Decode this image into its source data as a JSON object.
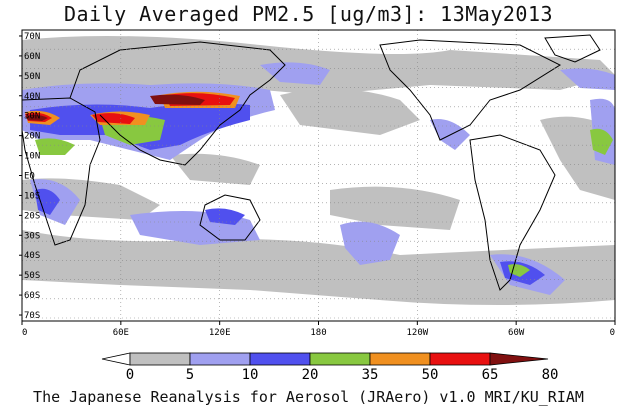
{
  "title": "Daily Averaged PM2.5 [ug/m3]: 13May2013",
  "footer": "The Japanese Reanalysis for Aerosol (JRAero) v1.0 MRI/KU_RIAM",
  "lat_labels": [
    "70N",
    "60N",
    "50N",
    "40N",
    "30N",
    "20N",
    "10N",
    "EQ",
    "10S",
    "20S",
    "30S",
    "40S",
    "50S",
    "60S",
    "70S"
  ],
  "lat_values": [
    70,
    60,
    50,
    40,
    30,
    20,
    10,
    0,
    -10,
    -20,
    -30,
    -40,
    -50,
    -60,
    -70
  ],
  "lon_labels": [
    "0",
    "60E",
    "120E",
    "180",
    "120W",
    "60W",
    "0"
  ],
  "lon_values": [
    0,
    60,
    120,
    180,
    240,
    300,
    360
  ],
  "legend": {
    "bins": [
      "0",
      "5",
      "10",
      "20",
      "35",
      "50",
      "65",
      "80"
    ],
    "colors": [
      "#ffffff",
      "#c0c0c0",
      "#a0a0f0",
      "#5050ee",
      "#88c840",
      "#f09020",
      "#e81010",
      "#801010"
    ]
  }
}
